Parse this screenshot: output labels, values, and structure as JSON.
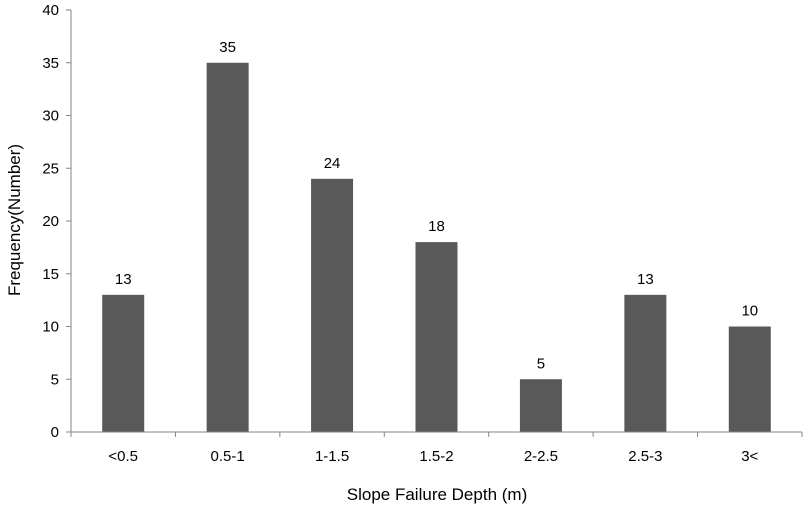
{
  "chart_data": {
    "type": "bar",
    "title": "",
    "xlabel": "Slope Failure Depth (m)",
    "ylabel": "Frequency(Number)",
    "categories": [
      "<0.5",
      "0.5-1",
      "1-1.5",
      "1.5-2",
      "2-2.5",
      "2.5-3",
      "3<"
    ],
    "values": [
      13,
      35,
      24,
      18,
      5,
      13,
      10
    ],
    "ylim": [
      0,
      40
    ],
    "yticks": [
      0,
      5,
      10,
      15,
      20,
      25,
      30,
      35,
      40
    ],
    "grid": false,
    "legend": "none",
    "data_labels": true,
    "colors": {
      "bar": "#595959",
      "axis": "#868686",
      "text": "#000000"
    }
  }
}
